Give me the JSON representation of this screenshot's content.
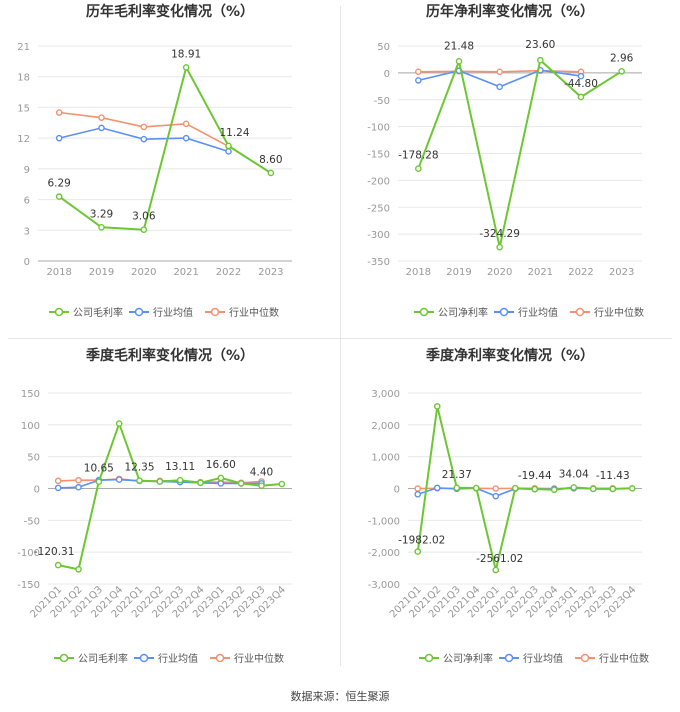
{
  "source_text": "数据来源：恒生聚源",
  "colors": {
    "company": "#6cc733",
    "avg": "#5b8ff9",
    "median": "#f4916f",
    "grid": "#e8e8e8",
    "axis": "#999999",
    "text": "#333333"
  },
  "chart_data": [
    {
      "type": "line",
      "title": "历年毛利率变化情况（%）",
      "categories": [
        "2018",
        "2019",
        "2020",
        "2021",
        "2022",
        "2023"
      ],
      "ylim": [
        0,
        21
      ],
      "yticks": [
        "0",
        "3",
        "6",
        "9",
        "12",
        "15",
        "18",
        "21"
      ],
      "ytick_values": [
        0,
        3,
        6,
        9,
        12,
        15,
        18,
        21
      ],
      "grid": true,
      "legend": "bottom",
      "series": [
        {
          "name": "公司毛利率",
          "values": [
            6.29,
            3.29,
            3.06,
            18.91,
            11.24,
            8.6
          ],
          "labels": [
            "6.29",
            "3.29",
            "3.06",
            "18.91",
            "11.24",
            "8.60"
          ]
        },
        {
          "name": "行业均值",
          "values": [
            12.0,
            13.0,
            11.9,
            12.0,
            10.7,
            null
          ]
        },
        {
          "name": "行业中位数",
          "values": [
            14.5,
            14.0,
            13.1,
            13.4,
            11.2,
            null
          ]
        }
      ]
    },
    {
      "type": "line",
      "title": "历年净利率变化情况（%）",
      "categories": [
        "2018",
        "2019",
        "2020",
        "2021",
        "2022",
        "2023"
      ],
      "ylim": [
        -350,
        50
      ],
      "yticks": [
        "-350",
        "-300",
        "-250",
        "-200",
        "-150",
        "-100",
        "-50",
        "0",
        "50"
      ],
      "ytick_values": [
        -350,
        -300,
        -250,
        -200,
        -150,
        -100,
        -50,
        0,
        50
      ],
      "grid": true,
      "legend": "bottom",
      "series": [
        {
          "name": "公司净利率",
          "values": [
            -178.28,
            21.48,
            -324.29,
            23.6,
            -44.8,
            2.96
          ],
          "labels": [
            "-178.28",
            "21.48",
            "-324.29",
            "23.60",
            "-44.80",
            "2.96"
          ]
        },
        {
          "name": "行业均值",
          "values": [
            -14,
            4,
            -26,
            5,
            -6,
            null
          ]
        },
        {
          "name": "行业中位数",
          "values": [
            2,
            3,
            2,
            4,
            2,
            null
          ]
        }
      ]
    },
    {
      "type": "line",
      "title": "季度毛利率变化情况（%）",
      "categories": [
        "2021Q1",
        "2021Q2",
        "2021Q3",
        "2021Q4",
        "2022Q1",
        "2022Q2",
        "2022Q3",
        "2022Q4",
        "2023Q1",
        "2023Q2",
        "2023Q3",
        "2023Q4"
      ],
      "ylim": [
        -150,
        150
      ],
      "yticks": [
        "-150",
        "-100",
        "-50",
        "0",
        "50",
        "100",
        "150"
      ],
      "ytick_values": [
        -150,
        -100,
        -50,
        0,
        50,
        100,
        150
      ],
      "grid": true,
      "legend": "bottom",
      "series": [
        {
          "name": "公司毛利率",
          "values": [
            -120.31,
            -127,
            10.65,
            102,
            12.35,
            11,
            13.11,
            9,
            16.6,
            8,
            4.4,
            7
          ],
          "labels": [
            "-120.31",
            "",
            "10.65",
            "",
            "12.35",
            "",
            "13.11",
            "",
            "16.60",
            "",
            "4.40",
            ""
          ]
        },
        {
          "name": "行业均值",
          "values": [
            1,
            2,
            13,
            14,
            12,
            11,
            10,
            9,
            8,
            8,
            8,
            null
          ]
        },
        {
          "name": "行业中位数",
          "values": [
            12,
            13,
            13,
            15,
            12,
            12,
            12,
            10,
            10,
            9,
            11,
            null
          ]
        }
      ]
    },
    {
      "type": "line",
      "title": "季度净利率变化情况（%）",
      "categories": [
        "2021Q1",
        "2021Q2",
        "2021Q3",
        "2021Q4",
        "2022Q1",
        "2022Q2",
        "2022Q3",
        "2022Q4",
        "2023Q1",
        "2023Q2",
        "2023Q3",
        "2023Q4"
      ],
      "ylim": [
        -3000,
        3000
      ],
      "yticks": [
        "-3,000",
        "-2,000",
        "-1,000",
        "0",
        "1,000",
        "2,000",
        "3,000"
      ],
      "ytick_values": [
        -3000,
        -2000,
        -1000,
        0,
        1000,
        2000,
        3000
      ],
      "grid": true,
      "legend": "bottom",
      "series": [
        {
          "name": "公司净利率",
          "values": [
            -1982.02,
            2580,
            21.37,
            15,
            -2561.02,
            10,
            -19.44,
            -40,
            34.04,
            -10,
            -11.43,
            5
          ],
          "labels": [
            "-1982.02",
            "",
            "21.37",
            "",
            "-2561.02",
            "",
            "-19.44",
            "",
            "34.04",
            "",
            "-11.43",
            ""
          ]
        },
        {
          "name": "行业均值",
          "values": [
            -180,
            20,
            -10,
            10,
            -240,
            -5,
            -20,
            -15,
            10,
            -10,
            -15,
            null
          ]
        },
        {
          "name": "行业中位数",
          "values": [
            0,
            5,
            0,
            5,
            0,
            5,
            5,
            0,
            5,
            5,
            5,
            null
          ]
        }
      ]
    }
  ]
}
